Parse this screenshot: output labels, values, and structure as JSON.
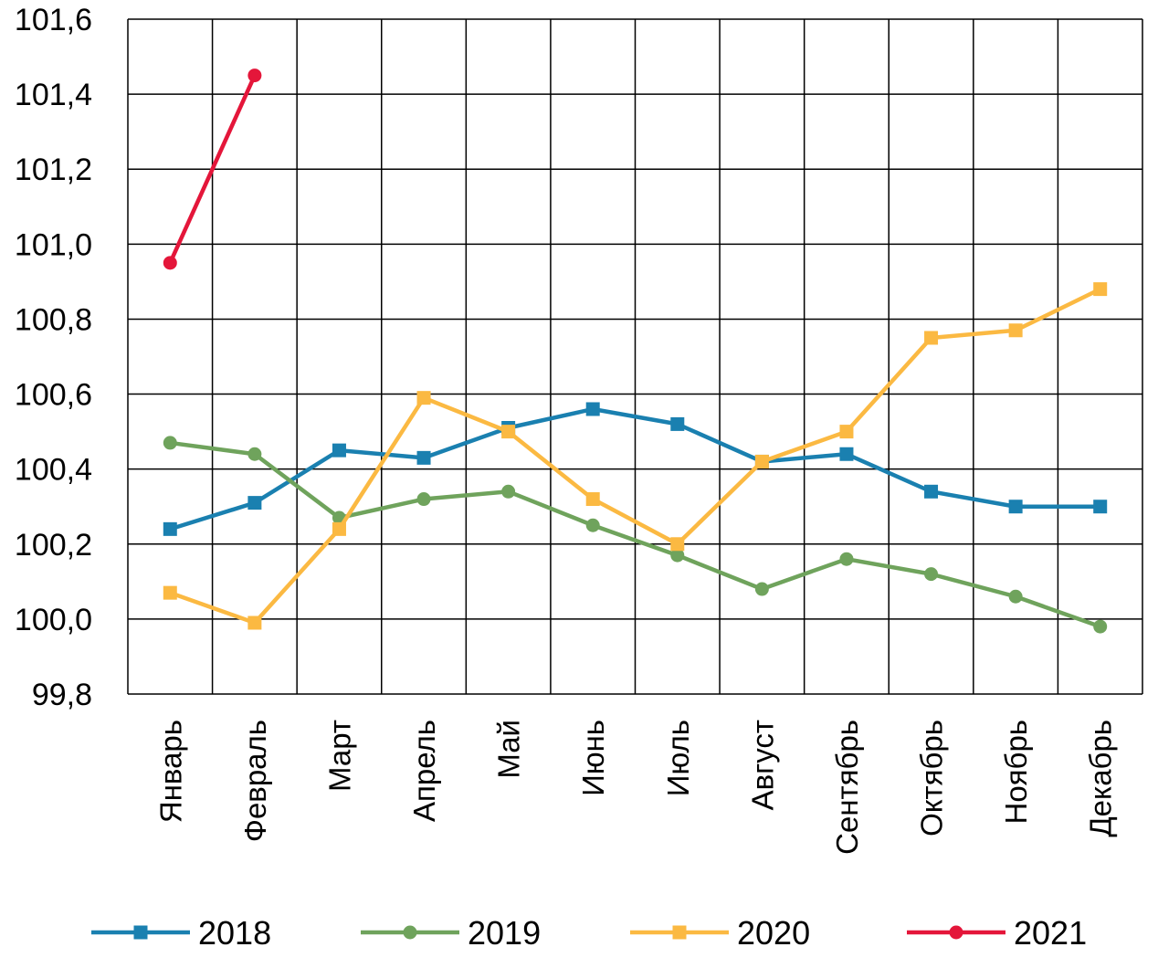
{
  "chart_data": {
    "type": "line",
    "title": "",
    "xlabel": "",
    "ylabel": "",
    "categories": [
      "Январь",
      "Февраль",
      "Март",
      "Апрель",
      "Май",
      "Июнь",
      "Июль",
      "Август",
      "Сентябрь",
      "Октябрь",
      "Ноябрь",
      "Декабрь"
    ],
    "ylim": [
      99.8,
      101.6
    ],
    "yticks": [
      "99,8",
      "100,0",
      "100,2",
      "100,4",
      "100,6",
      "100,8",
      "101,0",
      "101,2",
      "101,4",
      "101,6"
    ],
    "grid": true,
    "legend_position": "bottom",
    "series": [
      {
        "name": "2018",
        "color": "#1a80b0",
        "marker": "square",
        "values": [
          100.24,
          100.31,
          100.45,
          100.43,
          100.51,
          100.56,
          100.52,
          100.42,
          100.44,
          100.34,
          100.3,
          100.3
        ]
      },
      {
        "name": "2019",
        "color": "#6fa35c",
        "marker": "circle",
        "values": [
          100.47,
          100.44,
          100.27,
          100.32,
          100.34,
          100.25,
          100.17,
          100.08,
          100.16,
          100.12,
          100.06,
          99.98
        ]
      },
      {
        "name": "2020",
        "color": "#fbb942",
        "marker": "square",
        "values": [
          100.07,
          99.99,
          100.24,
          100.59,
          100.5,
          100.32,
          100.2,
          100.42,
          100.5,
          100.75,
          100.77,
          100.88
        ]
      },
      {
        "name": "2021",
        "color": "#e4163a",
        "marker": "circle",
        "values": [
          100.95,
          101.45,
          null,
          null,
          null,
          null,
          null,
          null,
          null,
          null,
          null,
          null
        ]
      }
    ]
  }
}
